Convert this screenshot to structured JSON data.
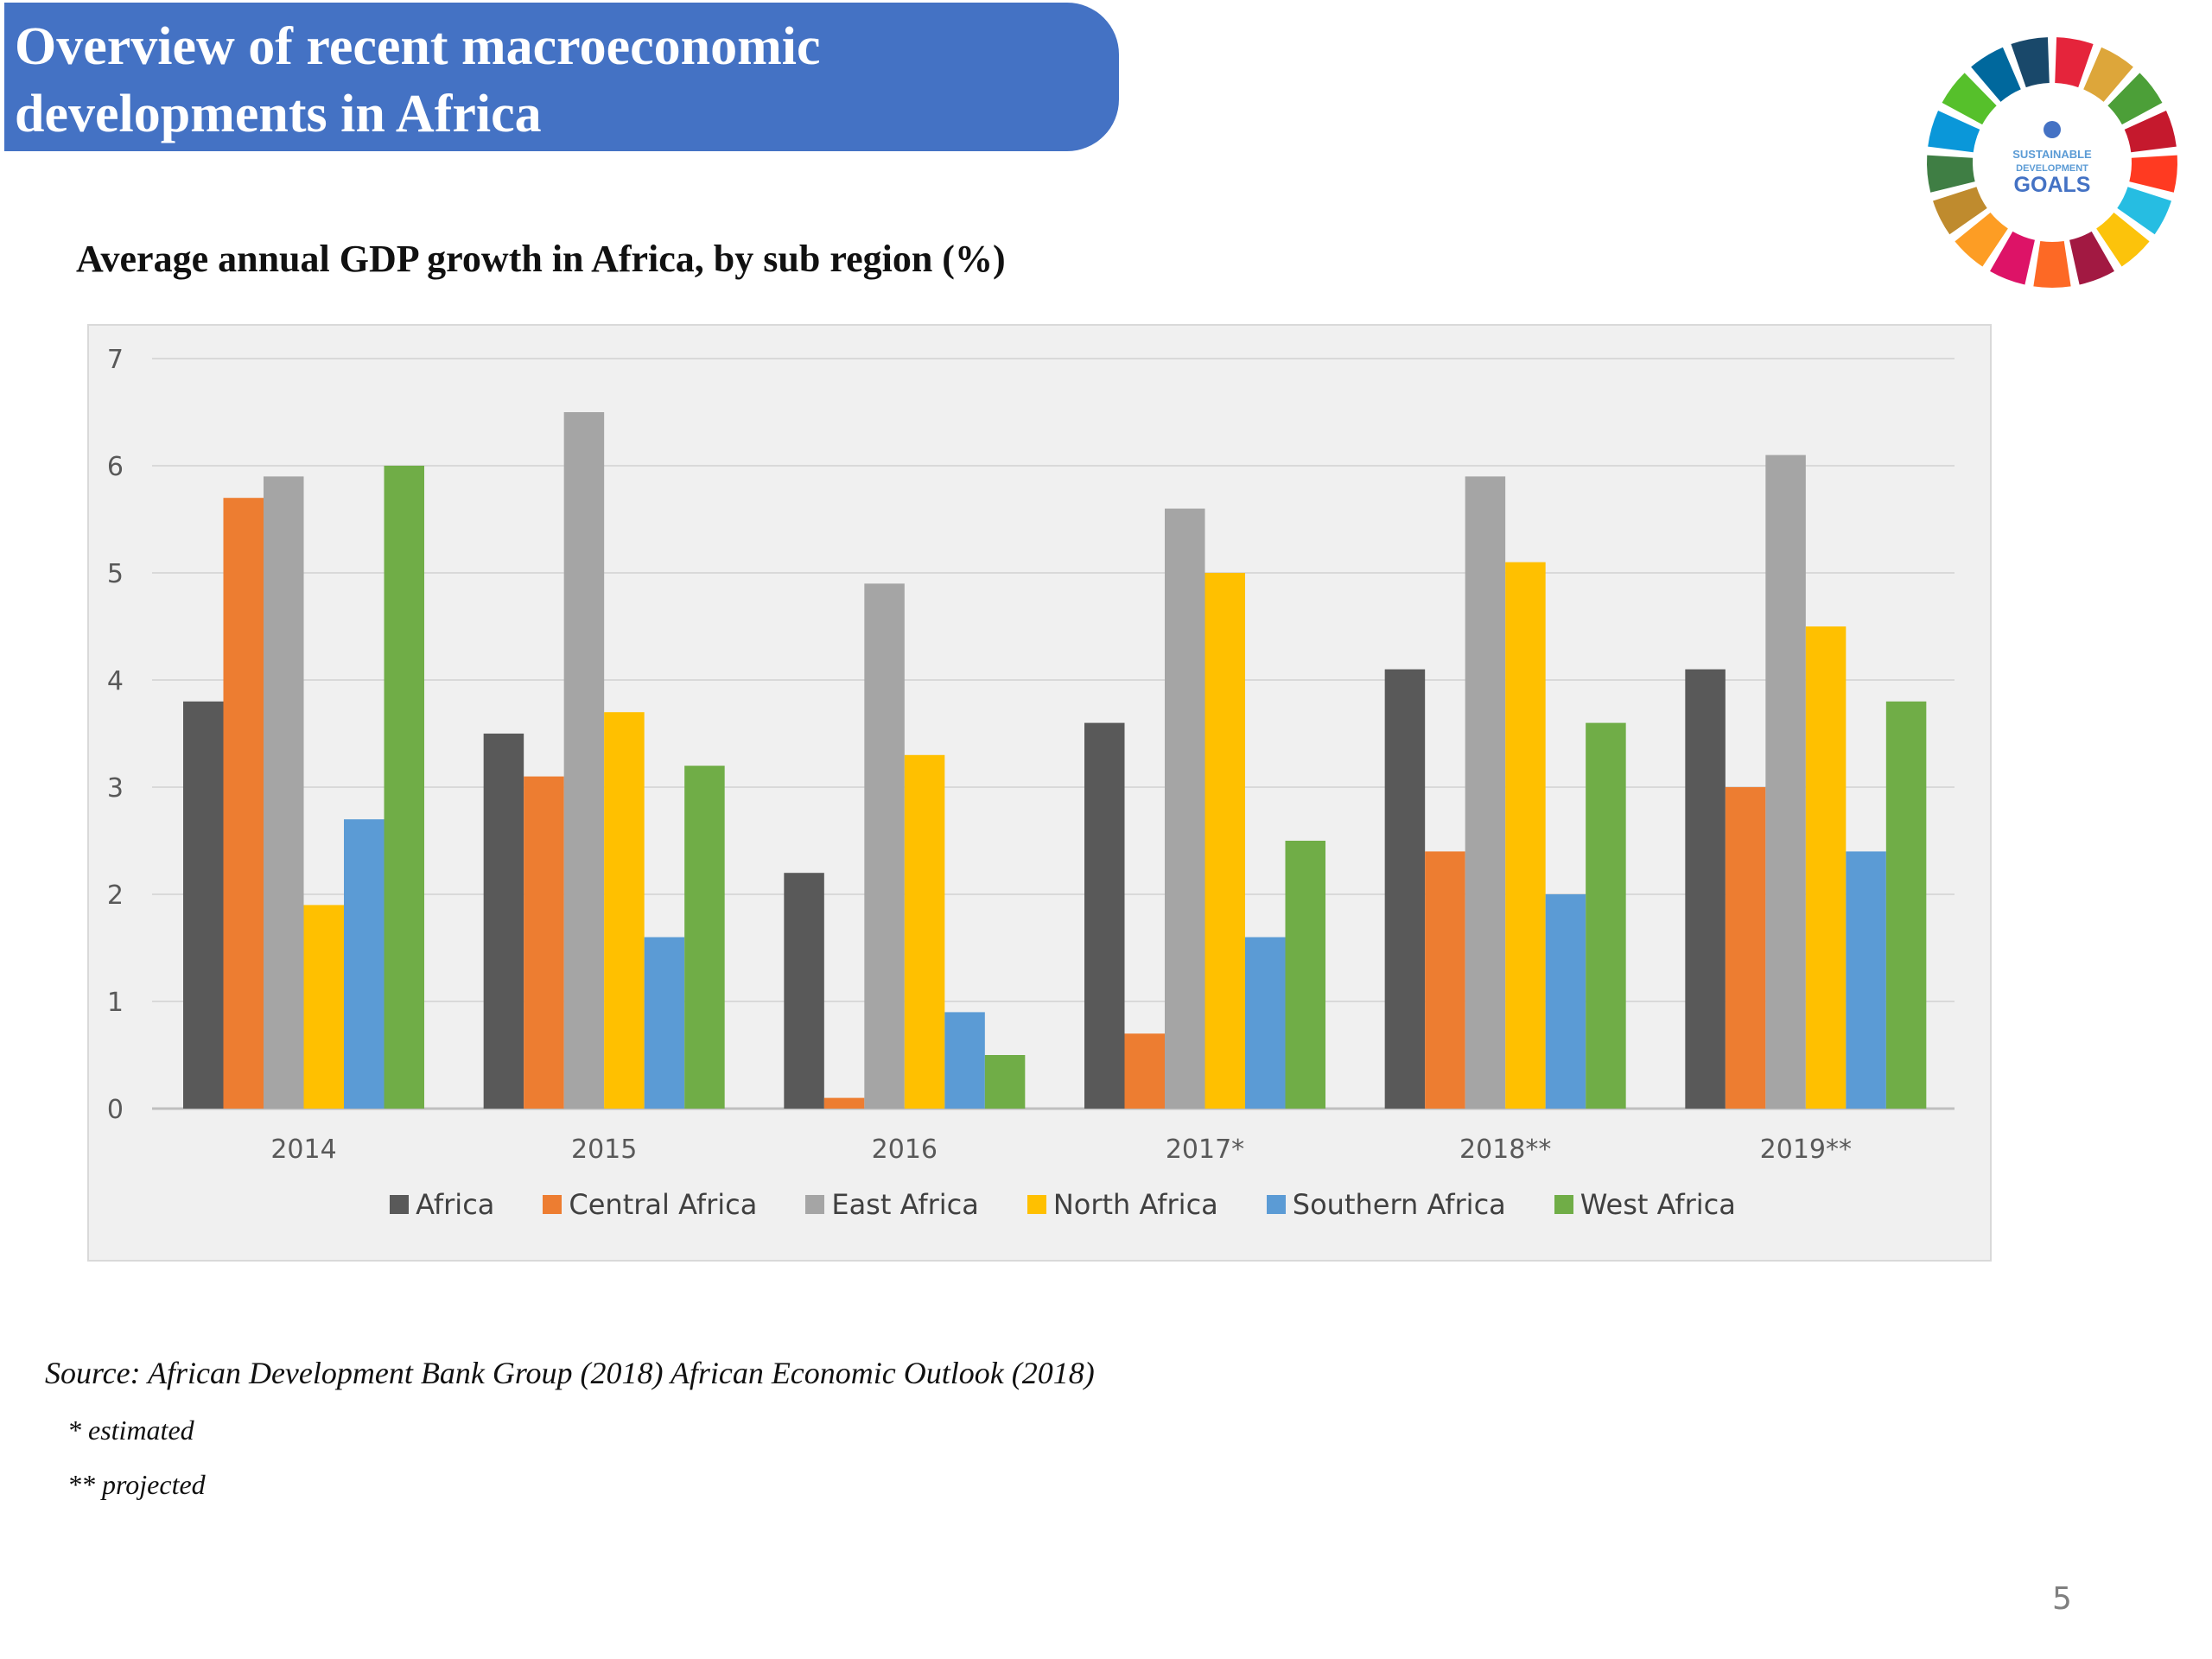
{
  "slide": {
    "title_line1": "Overview of recent macroeconomic",
    "title_line2": "developments in Africa",
    "chart_heading": "Average annual GDP growth in Africa, by sub region (%)",
    "source": "Source: African Development Bank Group (2018) African Economic Outlook (2018)",
    "note_estimated": "* estimated",
    "note_projected": "** projected",
    "page_number": "5",
    "logo_text_1": "SUSTAINABLE",
    "logo_text_2": "DEVELOPMENT",
    "logo_text_3": "GOALS"
  },
  "chart_data": {
    "type": "bar",
    "title": "",
    "xlabel": "",
    "ylabel": "",
    "ylim": [
      0,
      7
    ],
    "yticks": [
      0,
      1,
      2,
      3,
      4,
      5,
      6,
      7
    ],
    "grid": true,
    "legend_position": "bottom",
    "categories": [
      "2014",
      "2015",
      "2016",
      "2017*",
      "2018**",
      "2019**"
    ],
    "series": [
      {
        "name": "Africa",
        "color": "#595959",
        "values": [
          3.8,
          3.5,
          2.2,
          3.6,
          4.1,
          4.1
        ]
      },
      {
        "name": "Central Africa",
        "color": "#ed7d31",
        "values": [
          5.7,
          3.1,
          0.1,
          0.7,
          2.4,
          3.0
        ]
      },
      {
        "name": "East Africa",
        "color": "#a5a5a5",
        "values": [
          5.9,
          6.5,
          4.9,
          5.6,
          5.9,
          6.1
        ]
      },
      {
        "name": "North Africa",
        "color": "#ffc000",
        "values": [
          1.9,
          3.7,
          3.3,
          5.0,
          5.1,
          4.5
        ]
      },
      {
        "name": "Southern Africa",
        "color": "#5b9bd5",
        "values": [
          2.7,
          1.6,
          0.9,
          1.6,
          2.0,
          2.4
        ]
      },
      {
        "name": "West Africa",
        "color": "#70ad47",
        "values": [
          6.0,
          3.2,
          0.5,
          2.5,
          3.6,
          3.8
        ]
      }
    ]
  },
  "sdg_colors": [
    "#e5243b",
    "#dda63a",
    "#4c9f38",
    "#c5192d",
    "#ff3a21",
    "#26bde2",
    "#fcc30b",
    "#a21942",
    "#fd6925",
    "#dd1367",
    "#fd9d24",
    "#bf8b2e",
    "#3f7e44",
    "#0a97d9",
    "#56c02b",
    "#00689d",
    "#19486a"
  ]
}
